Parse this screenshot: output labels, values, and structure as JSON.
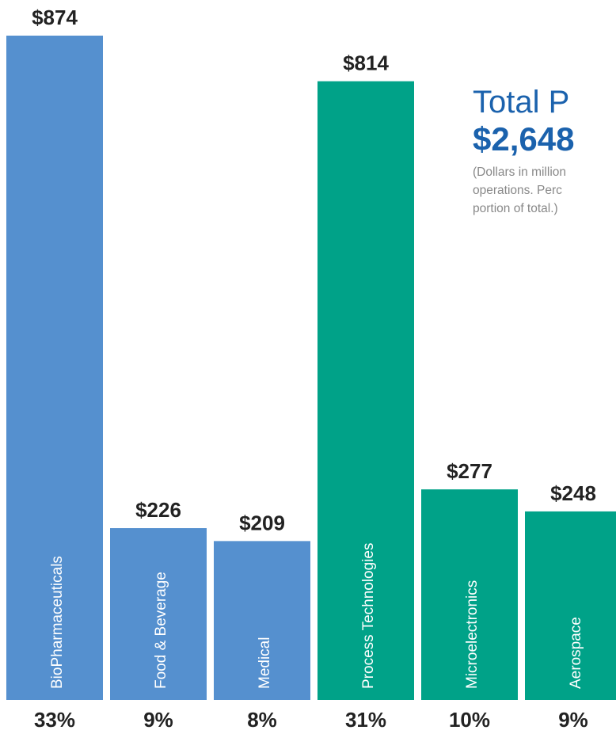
{
  "chart_data": {
    "type": "bar",
    "title": "Total P",
    "total_label": "$2,648",
    "subtitle_lines": [
      "(Dollars in million",
      "operations. Perc",
      "portion of total.)"
    ],
    "categories": [
      "BioPharmaceuticals",
      "Food & Beverage",
      "Medical",
      "Process Technologies",
      "Microelectronics",
      "Aerospace"
    ],
    "values": [
      874,
      226,
      209,
      814,
      277,
      248
    ],
    "value_labels": [
      "$874",
      "$226",
      "$209",
      "$814",
      "$277",
      "$248"
    ],
    "shares": [
      "33%",
      "9%",
      "8%",
      "31%",
      "10%",
      "9%"
    ],
    "colors": [
      "#5590cf",
      "#5590cf",
      "#5590cf",
      "#00a288",
      "#00a288",
      "#00a288"
    ]
  }
}
